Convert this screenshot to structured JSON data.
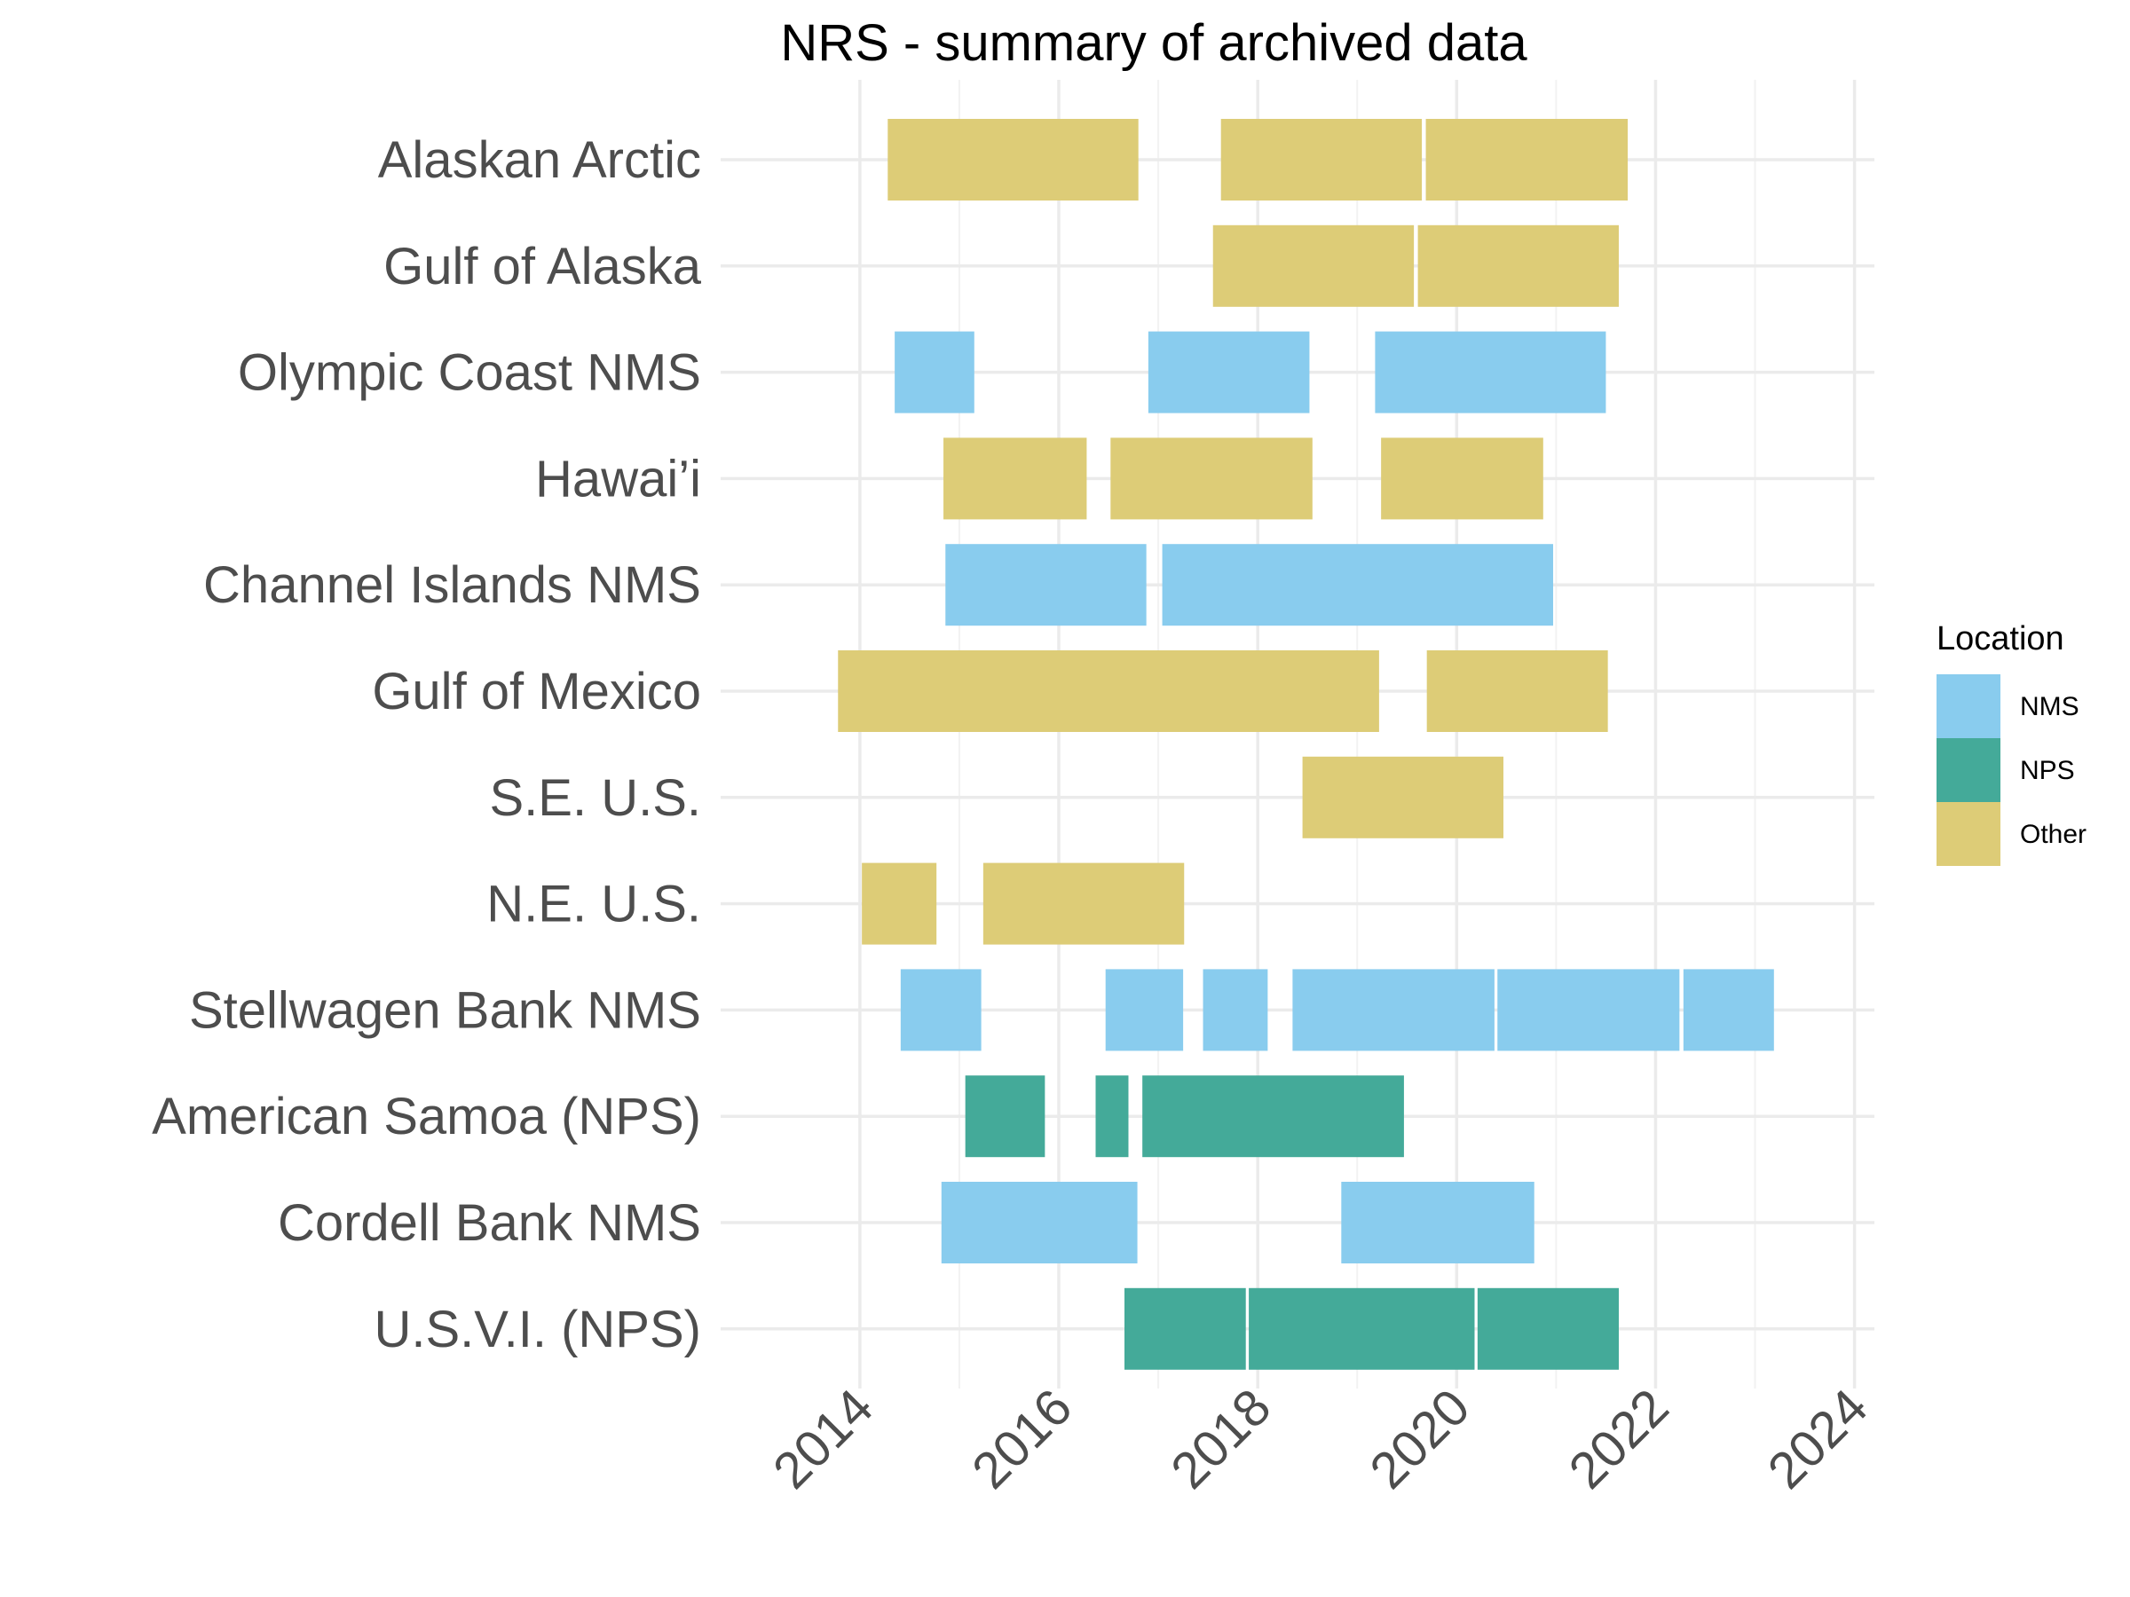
{
  "chart_data": {
    "type": "gantt",
    "title": "NRS - summary of archived data",
    "xlabel": "",
    "ylabel": "",
    "x_ticks": [
      "2014",
      "2016",
      "2018",
      "2020",
      "2022",
      "2024"
    ],
    "xlim": [
      2012.6,
      2024.2
    ],
    "grid": true,
    "legend": {
      "title": "Location",
      "placement": "right",
      "entries": [
        {
          "name": "NMS",
          "color": "#89CCEE"
        },
        {
          "name": "NPS",
          "color": "#44AA99"
        },
        {
          "name": "Other",
          "color": "#DDCC77"
        }
      ]
    },
    "categories": [
      "Alaskan Arctic",
      "Gulf of Alaska",
      "Olympic Coast NMS",
      "Hawai’i",
      "Channel Islands NMS",
      "Gulf of Mexico",
      "S.E. U.S.",
      "N.E. U.S.",
      "Stellwagen Bank NMS",
      "American Samoa (NPS)",
      "Cordell Bank NMS",
      "U.S.V.I. (NPS)"
    ],
    "segments": [
      {
        "site": "Alaskan Arctic",
        "location": "Other",
        "start": 2014.28,
        "end": 2016.8
      },
      {
        "site": "Alaskan Arctic",
        "location": "Other",
        "start": 2017.63,
        "end": 2019.65
      },
      {
        "site": "Alaskan Arctic",
        "location": "Other",
        "start": 2019.69,
        "end": 2021.72
      },
      {
        "site": "Gulf of Alaska",
        "location": "Other",
        "start": 2017.55,
        "end": 2019.57
      },
      {
        "site": "Gulf of Alaska",
        "location": "Other",
        "start": 2019.61,
        "end": 2021.63
      },
      {
        "site": "Olympic Coast NMS",
        "location": "NMS",
        "start": 2014.35,
        "end": 2015.15
      },
      {
        "site": "Olympic Coast NMS",
        "location": "NMS",
        "start": 2016.9,
        "end": 2018.52
      },
      {
        "site": "Olympic Coast NMS",
        "location": "NMS",
        "start": 2019.18,
        "end": 2021.5
      },
      {
        "site": "Hawai’i",
        "location": "Other",
        "start": 2014.84,
        "end": 2016.28
      },
      {
        "site": "Hawai’i",
        "location": "Other",
        "start": 2016.52,
        "end": 2018.55
      },
      {
        "site": "Hawai’i",
        "location": "Other",
        "start": 2019.24,
        "end": 2020.87
      },
      {
        "site": "Channel Islands NMS",
        "location": "NMS",
        "start": 2014.86,
        "end": 2016.88
      },
      {
        "site": "Channel Islands NMS",
        "location": "NMS",
        "start": 2017.04,
        "end": 2020.97
      },
      {
        "site": "Gulf of Mexico",
        "location": "Other",
        "start": 2013.78,
        "end": 2019.22
      },
      {
        "site": "Gulf of Mexico",
        "location": "Other",
        "start": 2019.7,
        "end": 2021.52
      },
      {
        "site": "S.E. U.S.",
        "location": "Other",
        "start": 2018.45,
        "end": 2020.47
      },
      {
        "site": "N.E. U.S.",
        "location": "Other",
        "start": 2014.02,
        "end": 2014.77
      },
      {
        "site": "N.E. U.S.",
        "location": "Other",
        "start": 2015.24,
        "end": 2017.26
      },
      {
        "site": "Stellwagen Bank NMS",
        "location": "NMS",
        "start": 2014.41,
        "end": 2015.22
      },
      {
        "site": "Stellwagen Bank NMS",
        "location": "NMS",
        "start": 2016.47,
        "end": 2017.25
      },
      {
        "site": "Stellwagen Bank NMS",
        "location": "NMS",
        "start": 2017.45,
        "end": 2018.1
      },
      {
        "site": "Stellwagen Bank NMS",
        "location": "NMS",
        "start": 2018.35,
        "end": 2020.38
      },
      {
        "site": "Stellwagen Bank NMS",
        "location": "NMS",
        "start": 2020.41,
        "end": 2022.24
      },
      {
        "site": "Stellwagen Bank NMS",
        "location": "NMS",
        "start": 2022.28,
        "end": 2023.19
      },
      {
        "site": "American Samoa (NPS)",
        "location": "NPS",
        "start": 2015.06,
        "end": 2015.86
      },
      {
        "site": "American Samoa (NPS)",
        "location": "NPS",
        "start": 2016.37,
        "end": 2016.7
      },
      {
        "site": "American Samoa (NPS)",
        "location": "NPS",
        "start": 2016.84,
        "end": 2019.47
      },
      {
        "site": "Cordell Bank NMS",
        "location": "NMS",
        "start": 2014.82,
        "end": 2016.79
      },
      {
        "site": "Cordell Bank NMS",
        "location": "NMS",
        "start": 2018.84,
        "end": 2020.78
      },
      {
        "site": "U.S.V.I. (NPS)",
        "location": "NPS",
        "start": 2016.66,
        "end": 2017.88
      },
      {
        "site": "U.S.V.I. (NPS)",
        "location": "NPS",
        "start": 2017.91,
        "end": 2020.18
      },
      {
        "site": "U.S.V.I. (NPS)",
        "location": "NPS",
        "start": 2020.21,
        "end": 2021.63
      }
    ]
  }
}
